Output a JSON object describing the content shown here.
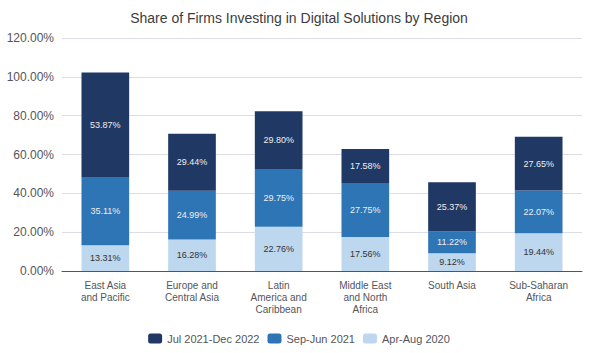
{
  "chart_data": {
    "type": "bar",
    "title": "Share of Firms Investing in Digital Solutions by Region",
    "categories": [
      "East Asia\nand Pacific",
      "Europe and\nCentral Asia",
      "Latin\nAmerica and\nCaribbean",
      "Middle East\nand North\nAfrica",
      "South Asia",
      "Sub-Saharan\nAfrica"
    ],
    "series": [
      {
        "name": "Jul 2021-Dec 2022",
        "color": "#1F3864",
        "values": [
          53.87,
          29.44,
          29.8,
          17.58,
          25.37,
          27.65
        ],
        "value_labels": [
          "53.87%",
          "29.44%",
          "29.80%",
          "17.58%",
          "25.37%",
          "27.65%"
        ]
      },
      {
        "name": "Sep-Jun 2021",
        "color": "#2E75B6",
        "values": [
          35.11,
          24.99,
          29.75,
          27.75,
          11.22,
          22.07
        ],
        "value_labels": [
          "35.11%",
          "24.99%",
          "29.75%",
          "27.75%",
          "11.22%",
          "22.07%"
        ]
      },
      {
        "name": "Apr-Aug 2020",
        "color": "#BDD7EE",
        "values": [
          13.31,
          16.28,
          22.76,
          17.56,
          9.12,
          19.44
        ],
        "value_labels": [
          "13.31%",
          "16.28%",
          "22.76%",
          "17.56%",
          "9.12%",
          "19.44%"
        ]
      }
    ],
    "stacked": true,
    "data_labels": true,
    "ylim": [
      0,
      120
    ],
    "yticks": [
      {
        "value": 0,
        "label": "0.00%"
      },
      {
        "value": 20,
        "label": "20.00%"
      },
      {
        "value": 40,
        "label": "40.00%"
      },
      {
        "value": 60,
        "label": "60.00%"
      },
      {
        "value": 80,
        "label": "80.00%"
      },
      {
        "value": 100,
        "label": "100.00%"
      },
      {
        "value": 120,
        "label": "120.00%"
      }
    ],
    "grid": true,
    "legend": "bottom"
  }
}
